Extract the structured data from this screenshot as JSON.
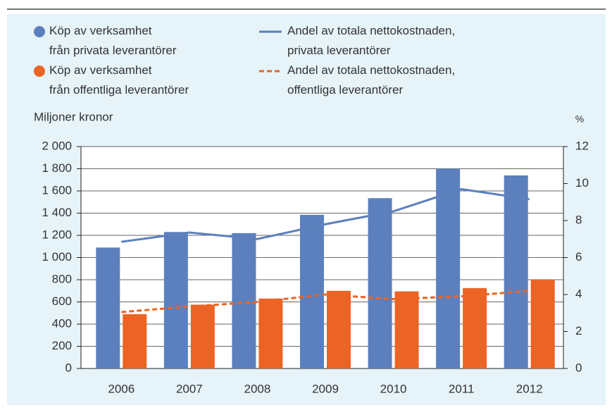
{
  "chart_data": {
    "type": "bar",
    "y_label": "Miljoner kronor",
    "y2_label": "%",
    "categories": [
      "2006",
      "2007",
      "2008",
      "2009",
      "2010",
      "2011",
      "2012"
    ],
    "series": [
      {
        "name": "Köp av verksamhet\nfrån privata leverantörer",
        "type": "bar",
        "color": "#5b80bd",
        "values": [
          1090,
          1230,
          1220,
          1385,
          1535,
          1800,
          1740
        ]
      },
      {
        "name": "Köp av verksamhet\nfrån offentliga leverantörer",
        "type": "bar",
        "color": "#eb6425",
        "values": [
          490,
          575,
          630,
          700,
          695,
          725,
          800
        ]
      },
      {
        "name": "Andel av totala nettokostnaden,\nprivata leverantörer",
        "type": "line",
        "axis": "y2",
        "color": "#5b80bd",
        "dashed": false,
        "values": [
          6.85,
          7.35,
          7.0,
          7.8,
          8.5,
          9.7,
          9.15
        ]
      },
      {
        "name": "Andel av totala nettokostnaden,\noffentliga leverantörer",
        "type": "line",
        "axis": "y2",
        "color": "#eb6425",
        "dashed": true,
        "values": [
          3.05,
          3.35,
          3.6,
          4.0,
          3.75,
          3.9,
          4.2
        ]
      }
    ],
    "ylim": [
      0,
      2000
    ],
    "yticks": [
      0,
      200,
      400,
      600,
      800,
      {
        "value": 1000,
        "label": "1 000"
      },
      {
        "value": 1200,
        "label": "1 200"
      },
      {
        "value": 1400,
        "label": "1 400"
      },
      {
        "value": 1600,
        "label": "1 600"
      },
      {
        "value": 1800,
        "label": "1 800"
      },
      {
        "value": 2000,
        "label": "2 000"
      }
    ],
    "y2lim": [
      0,
      12
    ],
    "y2ticks": [
      0,
      2,
      4,
      6,
      8,
      10,
      12
    ],
    "grid": true
  }
}
